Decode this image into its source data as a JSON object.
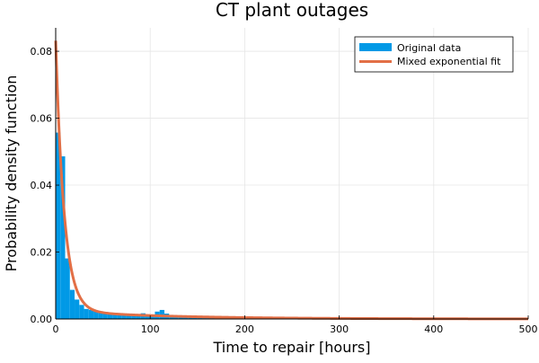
{
  "chart_data": {
    "type": "bar",
    "title": "CT plant outages",
    "xlabel": "Time to repair [hours]",
    "ylabel": "Probability density function",
    "xlim": [
      0,
      500
    ],
    "ylim": [
      0,
      0.087
    ],
    "xticks": [
      0,
      100,
      200,
      300,
      400,
      500
    ],
    "yticks": [
      0.0,
      0.02,
      0.04,
      0.06,
      0.08
    ],
    "ytick_labels": [
      "0.00",
      "0.02",
      "0.04",
      "0.06",
      "0.08"
    ],
    "grid": true,
    "legend_position": "top-right",
    "legend": [
      "Original data",
      "Mixed exponential fit"
    ],
    "histogram": {
      "name": "Original data",
      "color": "#0099e6",
      "bin_width": 5,
      "bin_starts": [
        0,
        5,
        10,
        15,
        20,
        25,
        30,
        35,
        40,
        45,
        50,
        55,
        60,
        65,
        70,
        75,
        80,
        85,
        90,
        95,
        100,
        105,
        110,
        115,
        120,
        125,
        130,
        135,
        140,
        145,
        150,
        155,
        160,
        165,
        170,
        175,
        180,
        185,
        190,
        195,
        200,
        210,
        220,
        230,
        240,
        250,
        260,
        270,
        280,
        290,
        300,
        310,
        320,
        330,
        340,
        350,
        360,
        370,
        380,
        390,
        400,
        410,
        420,
        430,
        440,
        450,
        460,
        470,
        480,
        490
      ],
      "density": [
        0.0557,
        0.0486,
        0.0181,
        0.0087,
        0.0058,
        0.0042,
        0.003,
        0.0027,
        0.0024,
        0.0022,
        0.002,
        0.0018,
        0.0017,
        0.0016,
        0.0015,
        0.0014,
        0.0013,
        0.0014,
        0.0017,
        0.0013,
        0.0012,
        0.0022,
        0.0027,
        0.0016,
        0.0012,
        0.001,
        0.0009,
        0.0009,
        0.0008,
        0.0008,
        0.0007,
        0.0007,
        0.0006,
        0.0006,
        0.0006,
        0.0005,
        0.0005,
        0.0005,
        0.0005,
        0.0004,
        0.0004,
        0.0004,
        0.0003,
        0.0003,
        0.0003,
        0.0003,
        0.0003,
        0.0002,
        0.0002,
        0.0002,
        0.0002,
        0.0002,
        0.0002,
        0.0002,
        0.0002,
        0.0001,
        0.0001,
        0.0001,
        0.0001,
        0.0001,
        0.0001,
        0.0001,
        0.0001,
        0.0001,
        0.0001,
        0.0001,
        0.0001,
        0.0001,
        0.0001,
        0.0001
      ]
    },
    "fit": {
      "name": "Mixed exponential fit",
      "color": "#e26f46",
      "components": [
        {
          "weight": 0.72,
          "rate": 0.112
        },
        {
          "weight": 0.28,
          "rate": 0.009
        }
      ]
    }
  }
}
